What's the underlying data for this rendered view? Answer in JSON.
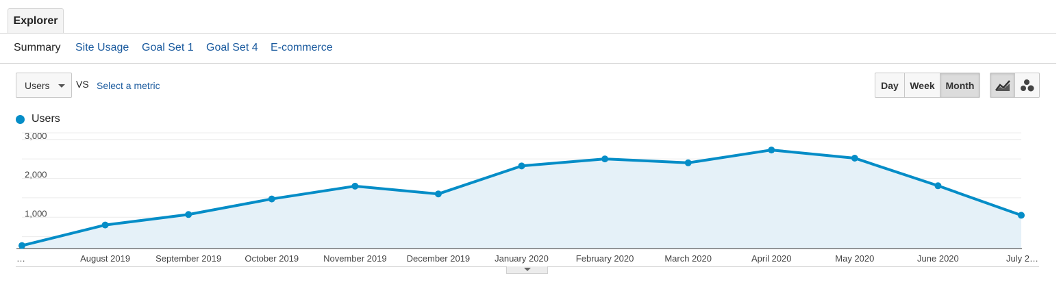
{
  "tabs": {
    "explorer": "Explorer"
  },
  "subnav": {
    "summary": "Summary",
    "site_usage": "Site Usage",
    "goal_set_1": "Goal Set 1",
    "goal_set_4": "Goal Set 4",
    "ecommerce": "E-commerce"
  },
  "controls": {
    "metric": "Users",
    "vs": "VS",
    "select_metric": "Select a metric",
    "day": "Day",
    "week": "Week",
    "month": "Month",
    "active_granularity": "Month",
    "line_chart_icon": "line-chart-icon",
    "motion_chart_icon": "bubble-chart-icon"
  },
  "colors": {
    "series": "#058dc7",
    "fill": "#e5f1f8",
    "link": "#1a5a9e"
  },
  "chart_data": {
    "type": "area",
    "title": "",
    "xlabel": "",
    "ylabel": "",
    "x": [
      "…",
      "August 2019",
      "September 2019",
      "October 2019",
      "November 2019",
      "December 2019",
      "January 2020",
      "February 2020",
      "March 2020",
      "April 2020",
      "May 2020",
      "June 2020",
      "July 2…"
    ],
    "series": [
      {
        "name": "Users",
        "values": [
          270,
          800,
          1070,
          1470,
          1800,
          1600,
          2320,
          2500,
          2400,
          2730,
          2520,
          1810,
          1050
        ]
      }
    ],
    "yticks": [
      "3,000",
      "2,000",
      "1,000"
    ],
    "ytick_values": [
      3000,
      2000,
      1000
    ],
    "ylim": [
      0,
      3000
    ],
    "grid": true,
    "legend": "top-left"
  }
}
